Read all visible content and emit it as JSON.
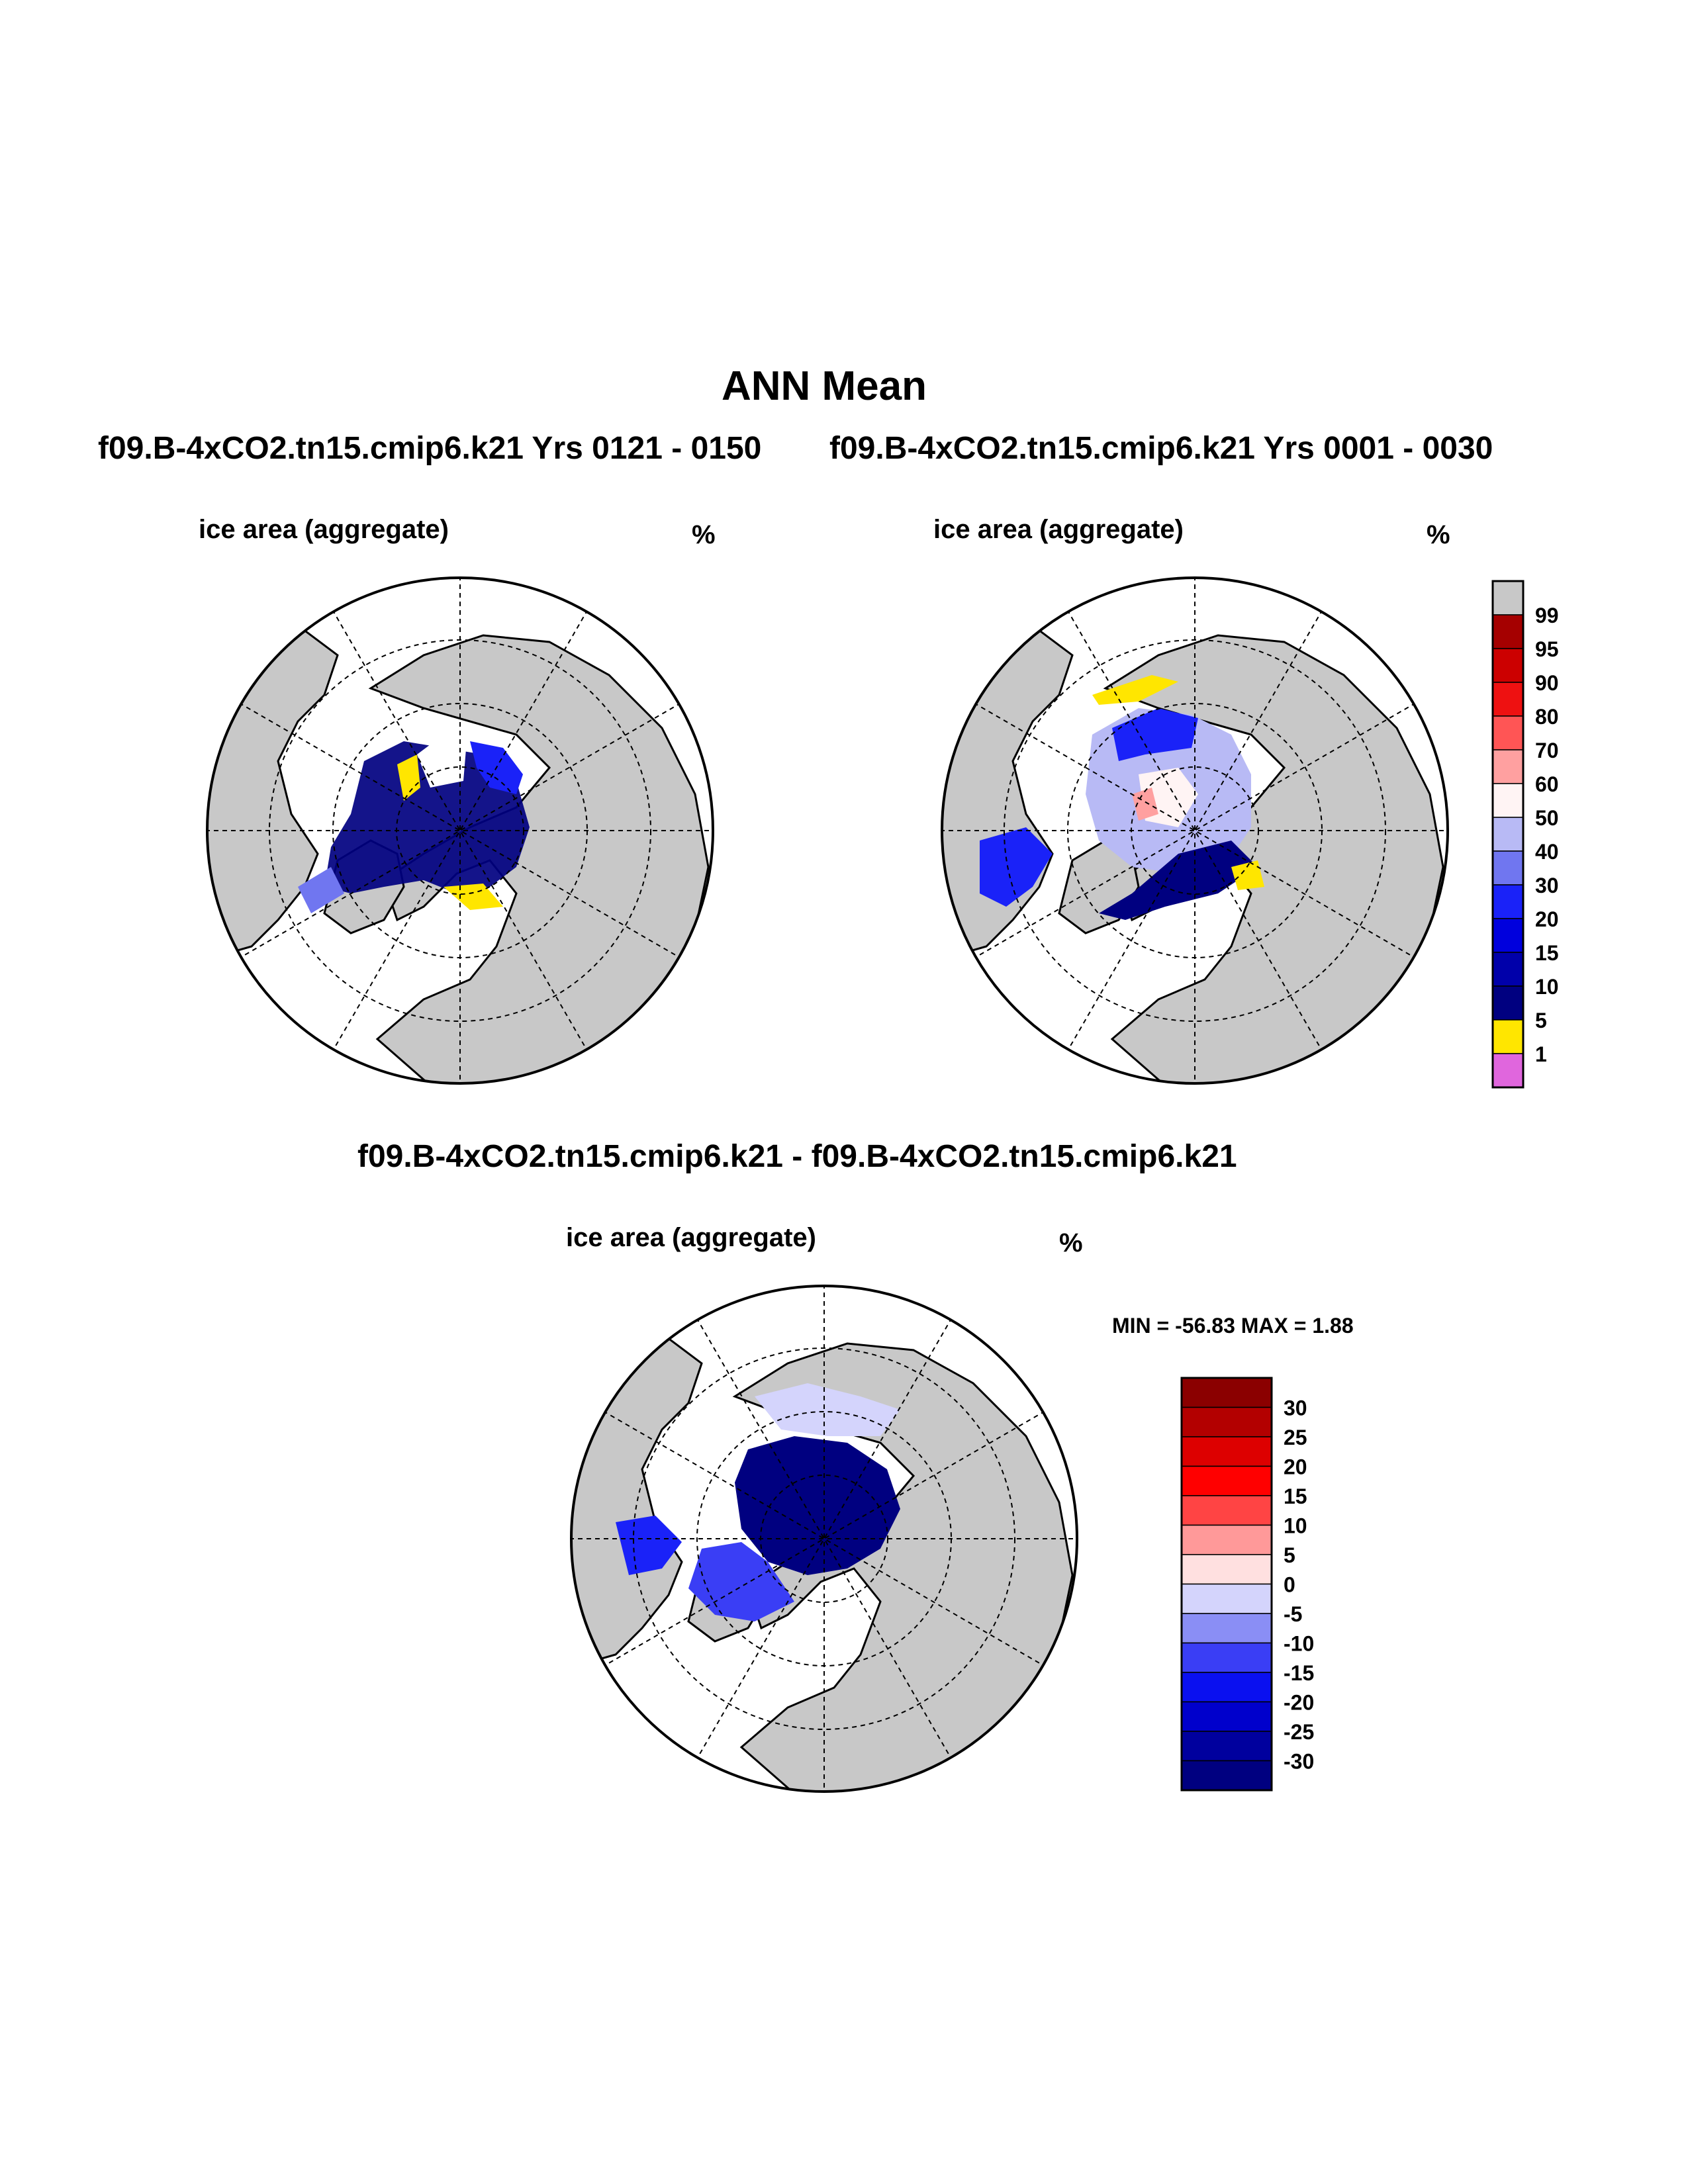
{
  "page": {
    "title": "ANN Mean",
    "case_a_title": "f09.B-4xCO2.tn15.cmip6.k21  Yrs 0121 - 0150",
    "case_b_title": "f09.B-4xCO2.tn15.cmip6.k21  Yrs 0001 - 0030",
    "diff_title": "f09.B-4xCO2.tn15.cmip6.k21 - f09.B-4xCO2.tn15.cmip6.k21"
  },
  "panels": [
    {
      "variable": "ice area  (aggregate)",
      "unit": "%"
    },
    {
      "variable": "ice area  (aggregate)",
      "unit": "%"
    },
    {
      "variable": "ice area  (aggregate)",
      "unit": "%",
      "stats": "MIN = -56.83 MAX =   1.88"
    }
  ],
  "colors": {
    "land": "#c8c8c8",
    "ocean": "#ffffff",
    "outline": "#000000"
  },
  "legend_top": {
    "labels": [
      "99",
      "95",
      "90",
      "80",
      "70",
      "60",
      "50",
      "40",
      "30",
      "20",
      "15",
      "10",
      "5",
      "1"
    ],
    "colors": [
      "#c8c8c8",
      "#a50000",
      "#cc0000",
      "#ee1111",
      "#ff5555",
      "#ffa0a0",
      "#fff4f4",
      "#b8baf5",
      "#7076f0",
      "#1a22f8",
      "#0000dd",
      "#0000aa",
      "#000080",
      "#ffe600",
      "#e066dd"
    ]
  },
  "legend_diff": {
    "labels": [
      "30",
      "25",
      "20",
      "15",
      "10",
      "5",
      "0",
      "-5",
      "-10",
      "-15",
      "-20",
      "-25",
      "-30"
    ],
    "colors": [
      "#8b0000",
      "#b30000",
      "#dd0000",
      "#ff0000",
      "#ff4444",
      "#ff9999",
      "#ffe0e0",
      "#d4d4fc",
      "#8a8ef5",
      "#3a3ef5",
      "#0a10f0",
      "#0000cc",
      "#00009e",
      "#000080"
    ]
  }
}
